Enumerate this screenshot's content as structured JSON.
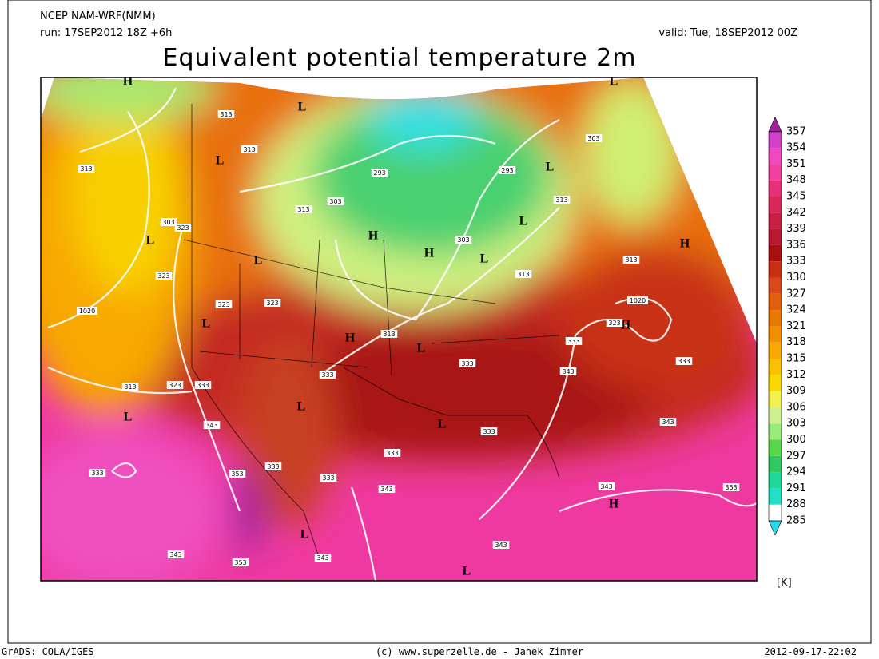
{
  "header": {
    "model": "NCEP NAM-WRF(NMM)",
    "run": "run: 17SEP2012 18Z +6h",
    "valid": "valid: Tue, 18SEP2012 00Z",
    "title": "Equivalent potential temperature 2m"
  },
  "colorbar": {
    "levels": [
      285,
      288,
      291,
      294,
      297,
      300,
      303,
      306,
      309,
      312,
      315,
      318,
      321,
      324,
      327,
      330,
      333,
      336,
      339,
      342,
      345,
      348,
      351,
      354,
      357
    ],
    "colors": [
      "#28d8f0",
      "#20e0c8",
      "#20d898",
      "#30c860",
      "#58d848",
      "#98ec78",
      "#d0f090",
      "#f0f050",
      "#f8d800",
      "#f8c000",
      "#f8a800",
      "#f09000",
      "#e87800",
      "#e06010",
      "#d84818",
      "#c83010",
      "#a81010",
      "#b81830",
      "#c82040",
      "#d82858",
      "#e83078",
      "#f040a0",
      "#f048c0",
      "#d040c8",
      "#a020a0"
    ],
    "unit": "[K]"
  },
  "map_labels": [
    "H",
    "L",
    "L",
    "L",
    "313",
    "313",
    "313",
    "293",
    "293",
    "303",
    "L",
    "303",
    "313",
    "313",
    "L",
    "H",
    "H",
    "303",
    "L",
    "303",
    "323",
    "L",
    "H",
    "313",
    "313",
    "323",
    "L",
    "1020",
    "323",
    "323",
    "1020",
    "L",
    "H",
    "323",
    "H",
    "313",
    "L",
    "333",
    "333",
    "343",
    "333",
    "333",
    "313",
    "323",
    "333",
    "L",
    "L",
    "343",
    "L",
    "333",
    "343",
    "333",
    "333",
    "333",
    "353",
    "333",
    "343",
    "343",
    "353",
    "H",
    "L",
    "343",
    "353",
    "343",
    "343",
    "L"
  ],
  "footer": {
    "left": "GrADS: COLA/IGES",
    "center": "(c) www.superzelle.de - Janek Zimmer",
    "right": "2012-09-17-22:02"
  }
}
